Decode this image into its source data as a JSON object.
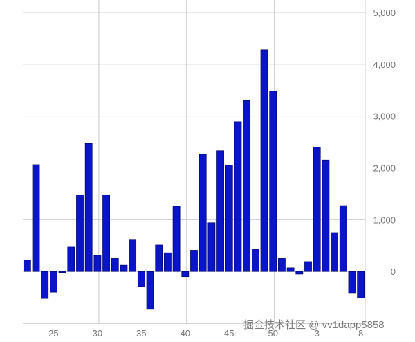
{
  "chart_data": {
    "type": "bar",
    "title": "",
    "xlabel": "",
    "ylabel": "",
    "categories": [
      "22",
      "23",
      "24",
      "25",
      "26",
      "27",
      "28",
      "29",
      "30",
      "31",
      "32",
      "33",
      "34",
      "35",
      "36",
      "37",
      "38",
      "39",
      "40",
      "41",
      "42",
      "43",
      "44",
      "45",
      "46",
      "47",
      "48",
      "49",
      "50",
      "51",
      "52",
      "1",
      "2",
      "3",
      "4",
      "5",
      "6",
      "7",
      "8"
    ],
    "values": [
      220,
      2060,
      -520,
      -400,
      -20,
      470,
      1480,
      2470,
      310,
      1480,
      250,
      120,
      620,
      -290,
      -730,
      510,
      360,
      1260,
      -100,
      410,
      2260,
      940,
      2330,
      2050,
      2890,
      3300,
      430,
      4280,
      3480,
      250,
      70,
      -50,
      190,
      2400,
      2150,
      750,
      1270,
      -410,
      -510
    ],
    "xtick_labels": [
      "25",
      "30",
      "35",
      "40",
      "45",
      "50",
      "3",
      "8"
    ],
    "ytick_labels": [
      "0",
      "1,000",
      "2,000",
      "3,000",
      "4,000",
      "5,000"
    ],
    "yticks": [
      0,
      1000,
      2000,
      3000,
      4000,
      5000
    ],
    "ylim": [
      -1000,
      5000
    ],
    "grid": true,
    "y_axis_side": "right",
    "bar_color": "#0a14c8",
    "bar_edge_color": "#000a6e"
  },
  "watermark": "掘金技术社区 @ vv1dapp5858"
}
